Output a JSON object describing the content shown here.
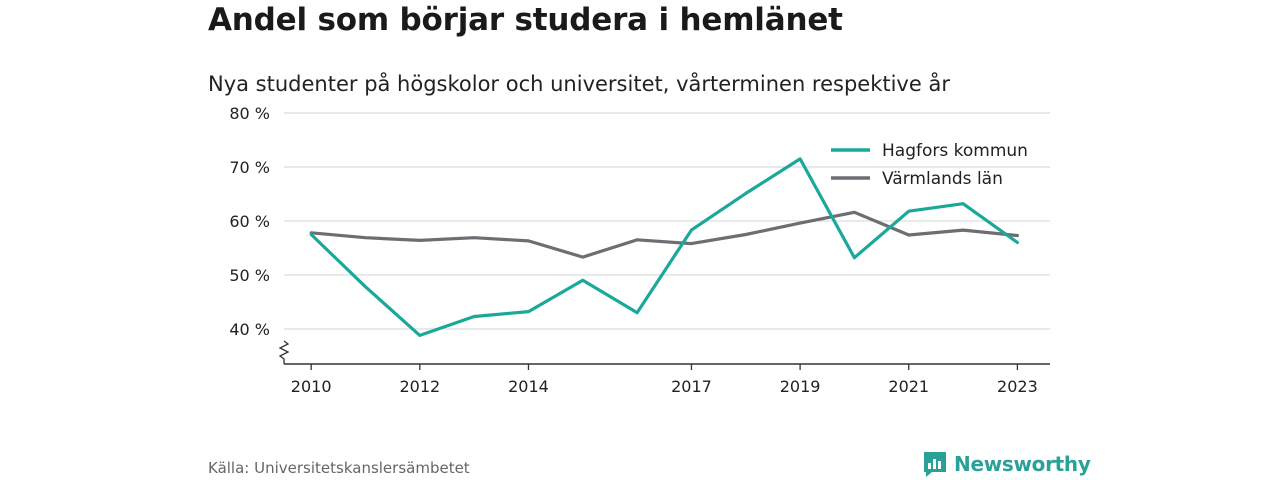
{
  "title": "Andel som börjar studera i hemlänet",
  "subtitle": "Nya studenter på högskolor och universitet, vårterminen respektive år",
  "source": "Källa: Universitetskanslersämbetet",
  "brand": "Newsworthy",
  "colors": {
    "teal": "#1aa89b",
    "gray": "#6e6d73",
    "grid": "#d9d9d9",
    "brand": "#2aa198"
  },
  "chart_data": {
    "type": "line",
    "title": "",
    "xlabel": "",
    "ylabel": "",
    "x": [
      2010,
      2011,
      2012,
      2013,
      2014,
      2015,
      2016,
      2017,
      2018,
      2019,
      2020,
      2021,
      2022,
      2023
    ],
    "x_ticks": [
      2010,
      2012,
      2014,
      2017,
      2019,
      2021,
      2023
    ],
    "x_range": [
      2009.5,
      2023.6
    ],
    "y_ticks": [
      40,
      50,
      60,
      70,
      80
    ],
    "y_tick_labels": [
      "40 %",
      "50 %",
      "60 %",
      "70 %",
      "80 %"
    ],
    "ylim": [
      33.5,
      80
    ],
    "y_axis_break": true,
    "grid": true,
    "legend_position": "top-right",
    "series": [
      {
        "name": "Hagfors kommun",
        "color": "#1aa89b",
        "values": [
          57.5,
          47.8,
          38.8,
          42.3,
          43.2,
          49.0,
          43.0,
          58.3,
          65.1,
          71.5,
          53.2,
          61.8,
          63.2,
          56.0
        ]
      },
      {
        "name": "Värmlands län",
        "color": "#6e6d73",
        "values": [
          57.8,
          56.9,
          56.4,
          56.9,
          56.3,
          53.3,
          56.5,
          55.8,
          57.5,
          59.6,
          61.6,
          57.4,
          58.3,
          57.3
        ]
      }
    ]
  }
}
